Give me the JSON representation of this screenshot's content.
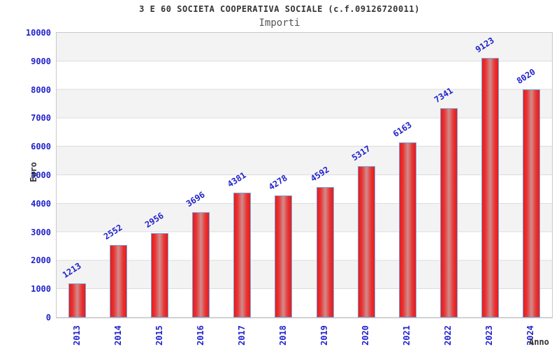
{
  "page": {
    "title": "3 E 60 SOCIETA COOPERATIVA SOCIALE (c.f.09126720011)",
    "subtitle": "Importi"
  },
  "colors": {
    "tick_label": "#2222cc",
    "value_label": "#2222cc",
    "bar_edge": "#e81b1b",
    "bar_center": "#d18c8c",
    "bar_border": "#74a7dc",
    "band_gray": "#f3f3f3",
    "band_white": "#ffffff",
    "grid_line": "#dcdcdc",
    "plot_border": "#c8c8c8",
    "title_text": "#333333",
    "subtitle_text": "#555555"
  },
  "chart_data": {
    "type": "bar",
    "title": "3 E 60 SOCIETA COOPERATIVA SOCIALE (c.f.09126720011)",
    "subtitle": "Importi",
    "xlabel": "Anno",
    "ylabel": "Euro",
    "categories": [
      "2013",
      "2014",
      "2015",
      "2016",
      "2017",
      "2018",
      "2019",
      "2020",
      "2021",
      "2022",
      "2023",
      "2024"
    ],
    "values": [
      1213,
      2552,
      2956,
      3696,
      4381,
      4278,
      4592,
      5317,
      6163,
      7341,
      9123,
      8020
    ],
    "ylim": [
      0,
      10000
    ],
    "yticks": [
      0,
      1000,
      2000,
      3000,
      4000,
      5000,
      6000,
      7000,
      8000,
      9000,
      10000
    ],
    "grid": true,
    "legend": false,
    "background_bands": "alternating gray/white per 1000, gray starts at top band",
    "value_labels_rotation_deg": -33,
    "x_tick_rotation_deg": -90
  }
}
